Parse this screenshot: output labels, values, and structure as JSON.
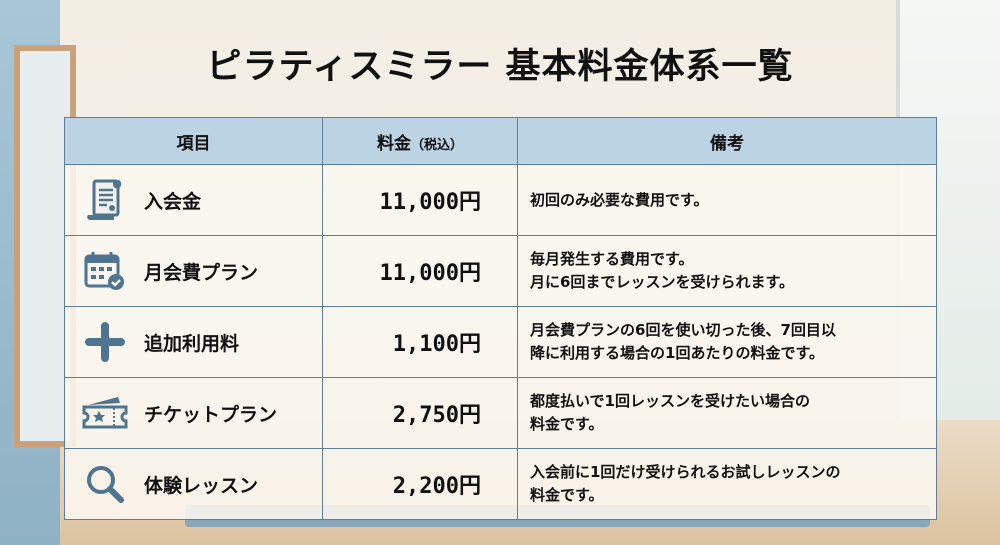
{
  "title": "ピラティスミラー 基本料金体系一覧",
  "colors": {
    "accent": "#4f7490",
    "header_bg": "#bcd3e3",
    "border": "#5e7f9a"
  },
  "table": {
    "headers": {
      "item": "項目",
      "price": "料金",
      "price_note": "（税込）",
      "remarks": "備考"
    },
    "rows": [
      {
        "icon": "document-scroll-icon",
        "item": "入会金",
        "price": "11,000円",
        "remarks": [
          "初回のみ必要な費用です。"
        ]
      },
      {
        "icon": "calendar-check-icon",
        "item": "月会費プラン",
        "price": "11,000円",
        "remarks": [
          "毎月発生する費用です。",
          "月に6回までレッスンを受けられます。"
        ]
      },
      {
        "icon": "plus-icon",
        "item": "追加利用料",
        "price": "1,100円",
        "remarks": [
          "月会費プランの6回を使い切った後、7回目以",
          "降に利用する場合の1回あたりの料金です。"
        ]
      },
      {
        "icon": "ticket-icon",
        "item": "チケットプラン",
        "price": "2,750円",
        "remarks": [
          "都度払いで1回レッスンを受けたい場合の",
          "料金です。"
        ]
      },
      {
        "icon": "search-icon",
        "item": "体験レッスン",
        "price": "2,200円",
        "remarks": [
          "入会前に1回だけ受けられるお試しレッスンの",
          "料金です。"
        ]
      }
    ]
  }
}
